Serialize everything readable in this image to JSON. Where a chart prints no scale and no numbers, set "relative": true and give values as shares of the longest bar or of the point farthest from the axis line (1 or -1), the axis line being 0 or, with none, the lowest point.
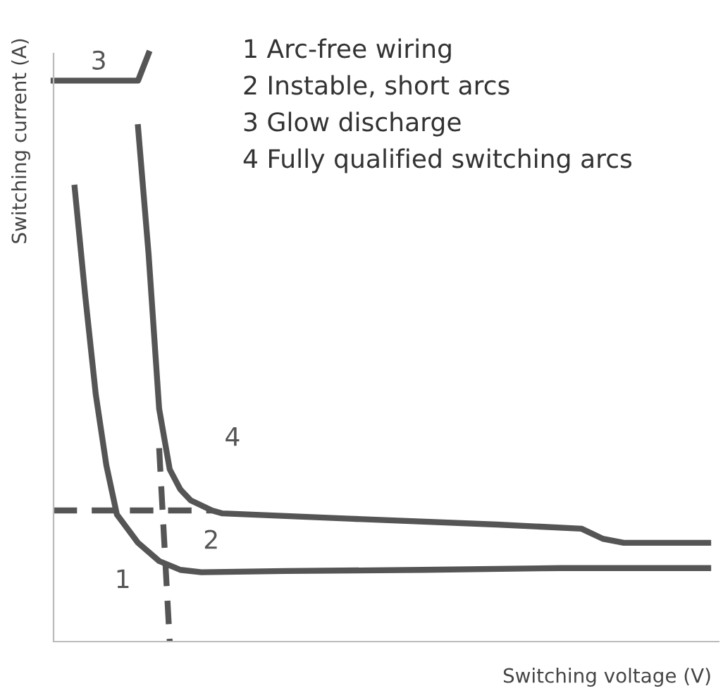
{
  "chart_data": {
    "type": "line",
    "relative": true,
    "xlabel": "Switching voltage (V)",
    "ylabel": "Switching current (A)",
    "marker": "none",
    "categories": [
      null,
      null,
      null,
      null,
      null,
      null,
      null,
      null,
      null,
      null,
      null,
      null,
      null,
      null,
      null,
      null,
      null,
      null,
      null,
      null,
      null,
      null,
      null,
      null,
      null,
      null,
      null,
      null,
      null,
      null,
      null,
      null,
      null,
      null,
      null,
      null,
      null,
      null,
      null,
      null,
      null,
      null,
      null,
      null,
      null,
      null,
      null,
      null,
      null,
      null,
      null,
      null,
      null,
      null,
      null,
      null,
      null,
      null,
      null,
      null,
      null,
      null,
      null,
      null
    ],
    "series": [
      {
        "color": "#555555",
        "line_style": "solid",
        "values": [
          null,
          null,
          0.772,
          0.588,
          0.42,
          0.3,
          0.216,
          null,
          0.168,
          null,
          0.137,
          null,
          0.122,
          null,
          0.118,
          null,
          null,
          null,
          null,
          null,
          null,
          null,
          0.12,
          null,
          null,
          null,
          null,
          null,
          null,
          null,
          null,
          null,
          null,
          null,
          null,
          0.122,
          null,
          null,
          null,
          null,
          null,
          null,
          null,
          null,
          null,
          null,
          null,
          null,
          0.125,
          null,
          null,
          null,
          null,
          null,
          null,
          null,
          null,
          null,
          null,
          null,
          null,
          null,
          0.125,
          null
        ]
      },
      {
        "color": "#555555",
        "line_style": "solid",
        "values": [
          null,
          null,
          null,
          null,
          null,
          null,
          null,
          null,
          0.875,
          0.659,
          0.396,
          0.293,
          0.259,
          0.24,
          null,
          0.223,
          0.218,
          null,
          null,
          null,
          null,
          null,
          null,
          null,
          null,
          null,
          null,
          null,
          0.209,
          null,
          null,
          null,
          null,
          null,
          null,
          null,
          null,
          null,
          null,
          null,
          null,
          null,
          0.199,
          null,
          null,
          null,
          null,
          null,
          null,
          null,
          0.192,
          null,
          0.175,
          null,
          0.168,
          null,
          null,
          null,
          null,
          null,
          null,
          null,
          0.168,
          null
        ]
      },
      {
        "color": "#555555",
        "line_style": "solid",
        "values": [
          0.954,
          null,
          null,
          null,
          null,
          null,
          null,
          null,
          0.954,
          1.0,
          null,
          null,
          null,
          null,
          null,
          null,
          null,
          null,
          null,
          null,
          null,
          null,
          null,
          null,
          null,
          null,
          null,
          null,
          null,
          null,
          null,
          null,
          null,
          null,
          null,
          null,
          null,
          null,
          null,
          null,
          null,
          null,
          null,
          null,
          null,
          null,
          null,
          null,
          null,
          null,
          null,
          null,
          null,
          null,
          null,
          null,
          null,
          null,
          null,
          null,
          null,
          null,
          null,
          null
        ]
      },
      {
        "color": "#555555",
        "line_style": "dashed",
        "values": [
          0.223,
          null,
          null,
          null,
          null,
          null,
          null,
          null,
          null,
          null,
          null,
          null,
          null,
          null,
          null,
          0.223,
          null,
          null,
          null,
          null,
          null,
          null,
          null,
          null,
          null,
          null,
          null,
          null,
          null,
          null,
          null,
          null,
          null,
          null,
          null,
          null,
          null,
          null,
          null,
          null,
          null,
          null,
          null,
          null,
          null,
          null,
          null,
          null,
          null,
          null,
          null,
          null,
          null,
          null,
          null,
          null,
          null,
          null,
          null,
          null,
          null,
          null,
          null,
          null
        ]
      },
      {
        "color": "#555555",
        "line_style": "dashed",
        "values": [
          null,
          null,
          null,
          null,
          null,
          null,
          null,
          null,
          null,
          null,
          0.329,
          0.0,
          null,
          null,
          null,
          null,
          null,
          null,
          null,
          null,
          null,
          null,
          null,
          null,
          null,
          null,
          null,
          null,
          null,
          null,
          null,
          null,
          null,
          null,
          null,
          null,
          null,
          null,
          null,
          null,
          null,
          null,
          null,
          null,
          null,
          null,
          null,
          null,
          null,
          null,
          null,
          null,
          null,
          null,
          null,
          null,
          null,
          null,
          null,
          null,
          null,
          null,
          null,
          null
        ]
      }
    ],
    "annotations": [
      "1",
      "2",
      "3",
      "4",
      "1 Arc-free wiring",
      "2 Instable, short arcs",
      "3 Glow discharge",
      "4 Fully qualified switching arcs"
    ]
  }
}
